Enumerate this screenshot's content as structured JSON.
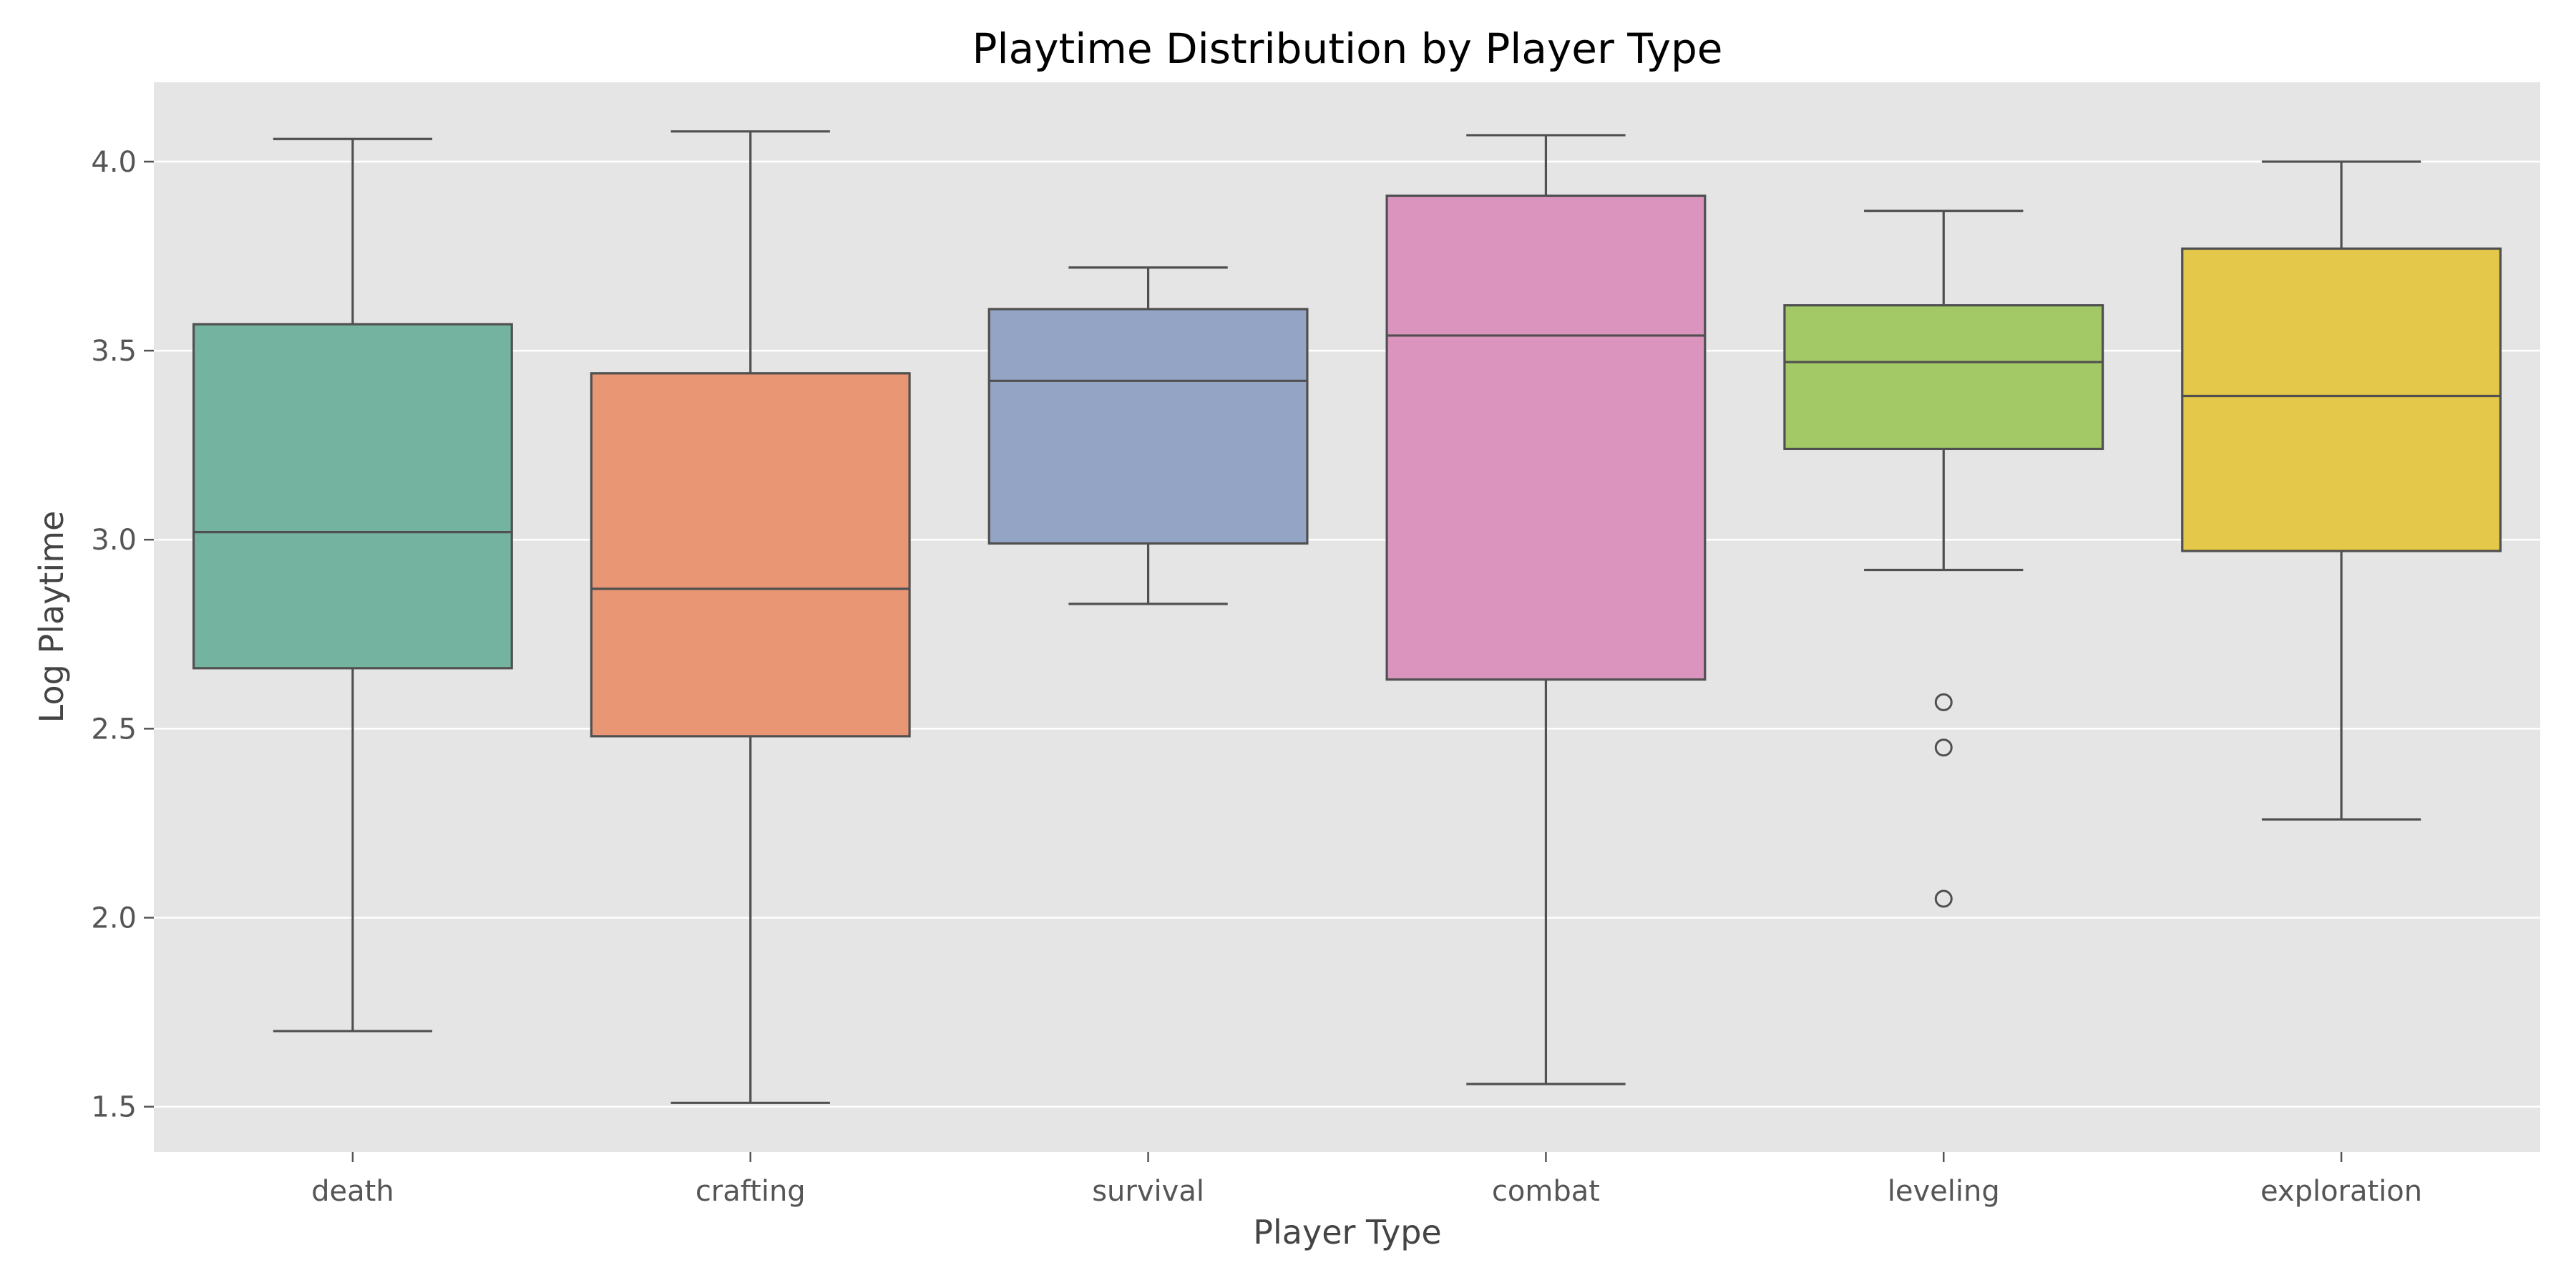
{
  "chart_data": {
    "type": "box",
    "title": "Playtime Distribution by Player Type",
    "xlabel": "Player Type",
    "ylabel": "Log Playtime",
    "ylim": [
      1.38,
      4.21
    ],
    "yticks": [
      1.5,
      2.0,
      2.5,
      3.0,
      3.5,
      4.0
    ],
    "ytick_labels": [
      "1.5",
      "2.0",
      "2.5",
      "3.0",
      "3.5",
      "4.0"
    ],
    "grid": true,
    "categories": [
      "death",
      "crafting",
      "survival",
      "combat",
      "leveling",
      "exploration"
    ],
    "boxes": [
      {
        "category": "death",
        "whisker_low": 1.7,
        "q1": 2.66,
        "median": 3.02,
        "q3": 3.57,
        "whisker_high": 4.06,
        "outliers": [],
        "color": "#73B3A0"
      },
      {
        "category": "crafting",
        "whisker_low": 1.51,
        "q1": 2.48,
        "median": 2.87,
        "q3": 3.44,
        "whisker_high": 4.08,
        "outliers": [],
        "color": "#E99675"
      },
      {
        "category": "survival",
        "whisker_low": 2.83,
        "q1": 2.99,
        "median": 3.42,
        "q3": 3.61,
        "whisker_high": 3.72,
        "outliers": [],
        "color": "#93A4C5"
      },
      {
        "category": "combat",
        "whisker_low": 1.56,
        "q1": 2.63,
        "median": 3.54,
        "q3": 3.91,
        "whisker_high": 4.07,
        "outliers": [],
        "color": "#DB94BE"
      },
      {
        "category": "leveling",
        "whisker_low": 2.92,
        "q1": 3.24,
        "median": 3.47,
        "q3": 3.62,
        "whisker_high": 3.87,
        "outliers": [
          2.57,
          2.45,
          2.05
        ],
        "color": "#A3C966"
      },
      {
        "category": "exploration",
        "whisker_low": 2.26,
        "q1": 2.97,
        "median": 3.38,
        "q3": 3.77,
        "whisker_high": 4.0,
        "outliers": [],
        "color": "#E4C84A"
      }
    ],
    "colors": {
      "plot_background": "#E5E5E5",
      "grid": "#FFFFFF",
      "box_edge": "#505050"
    }
  }
}
